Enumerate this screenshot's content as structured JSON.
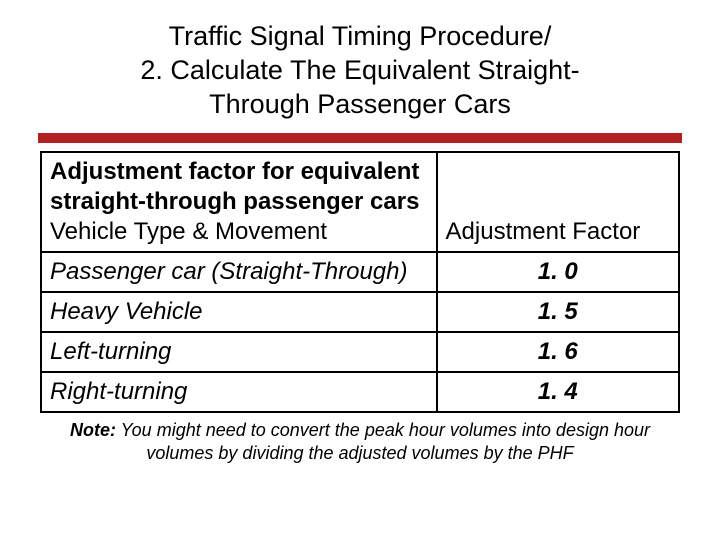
{
  "title_line1": "Traffic Signal Timing Procedure/",
  "title_line2": "2. Calculate The Equivalent Straight-",
  "title_line3": "Through Passenger Cars",
  "accent_color": "#b22222",
  "background_color": "#ffffff",
  "text_color": "#000000",
  "table": {
    "caption": "Adjustment factor for equivalent straight-through passenger cars",
    "columns": [
      "Vehicle Type & Movement",
      "Adjustment Factor"
    ],
    "rows": [
      {
        "label": "Passenger car (Straight-Through)",
        "value": "1. 0"
      },
      {
        "label": "Heavy Vehicle",
        "value": "1. 5"
      },
      {
        "label": "Left-turning",
        "value": "1. 6"
      },
      {
        "label": "Right-turning",
        "value": "1. 4"
      }
    ],
    "border_color": "#000000",
    "font_family": "Verdana",
    "body_fontsize": 24,
    "title_fontsize": 27,
    "note_fontsize": 18
  },
  "note_label": "Note:",
  "note_text": " You might need to convert the peak hour volumes into design hour volumes by dividing the adjusted volumes by the PHF"
}
